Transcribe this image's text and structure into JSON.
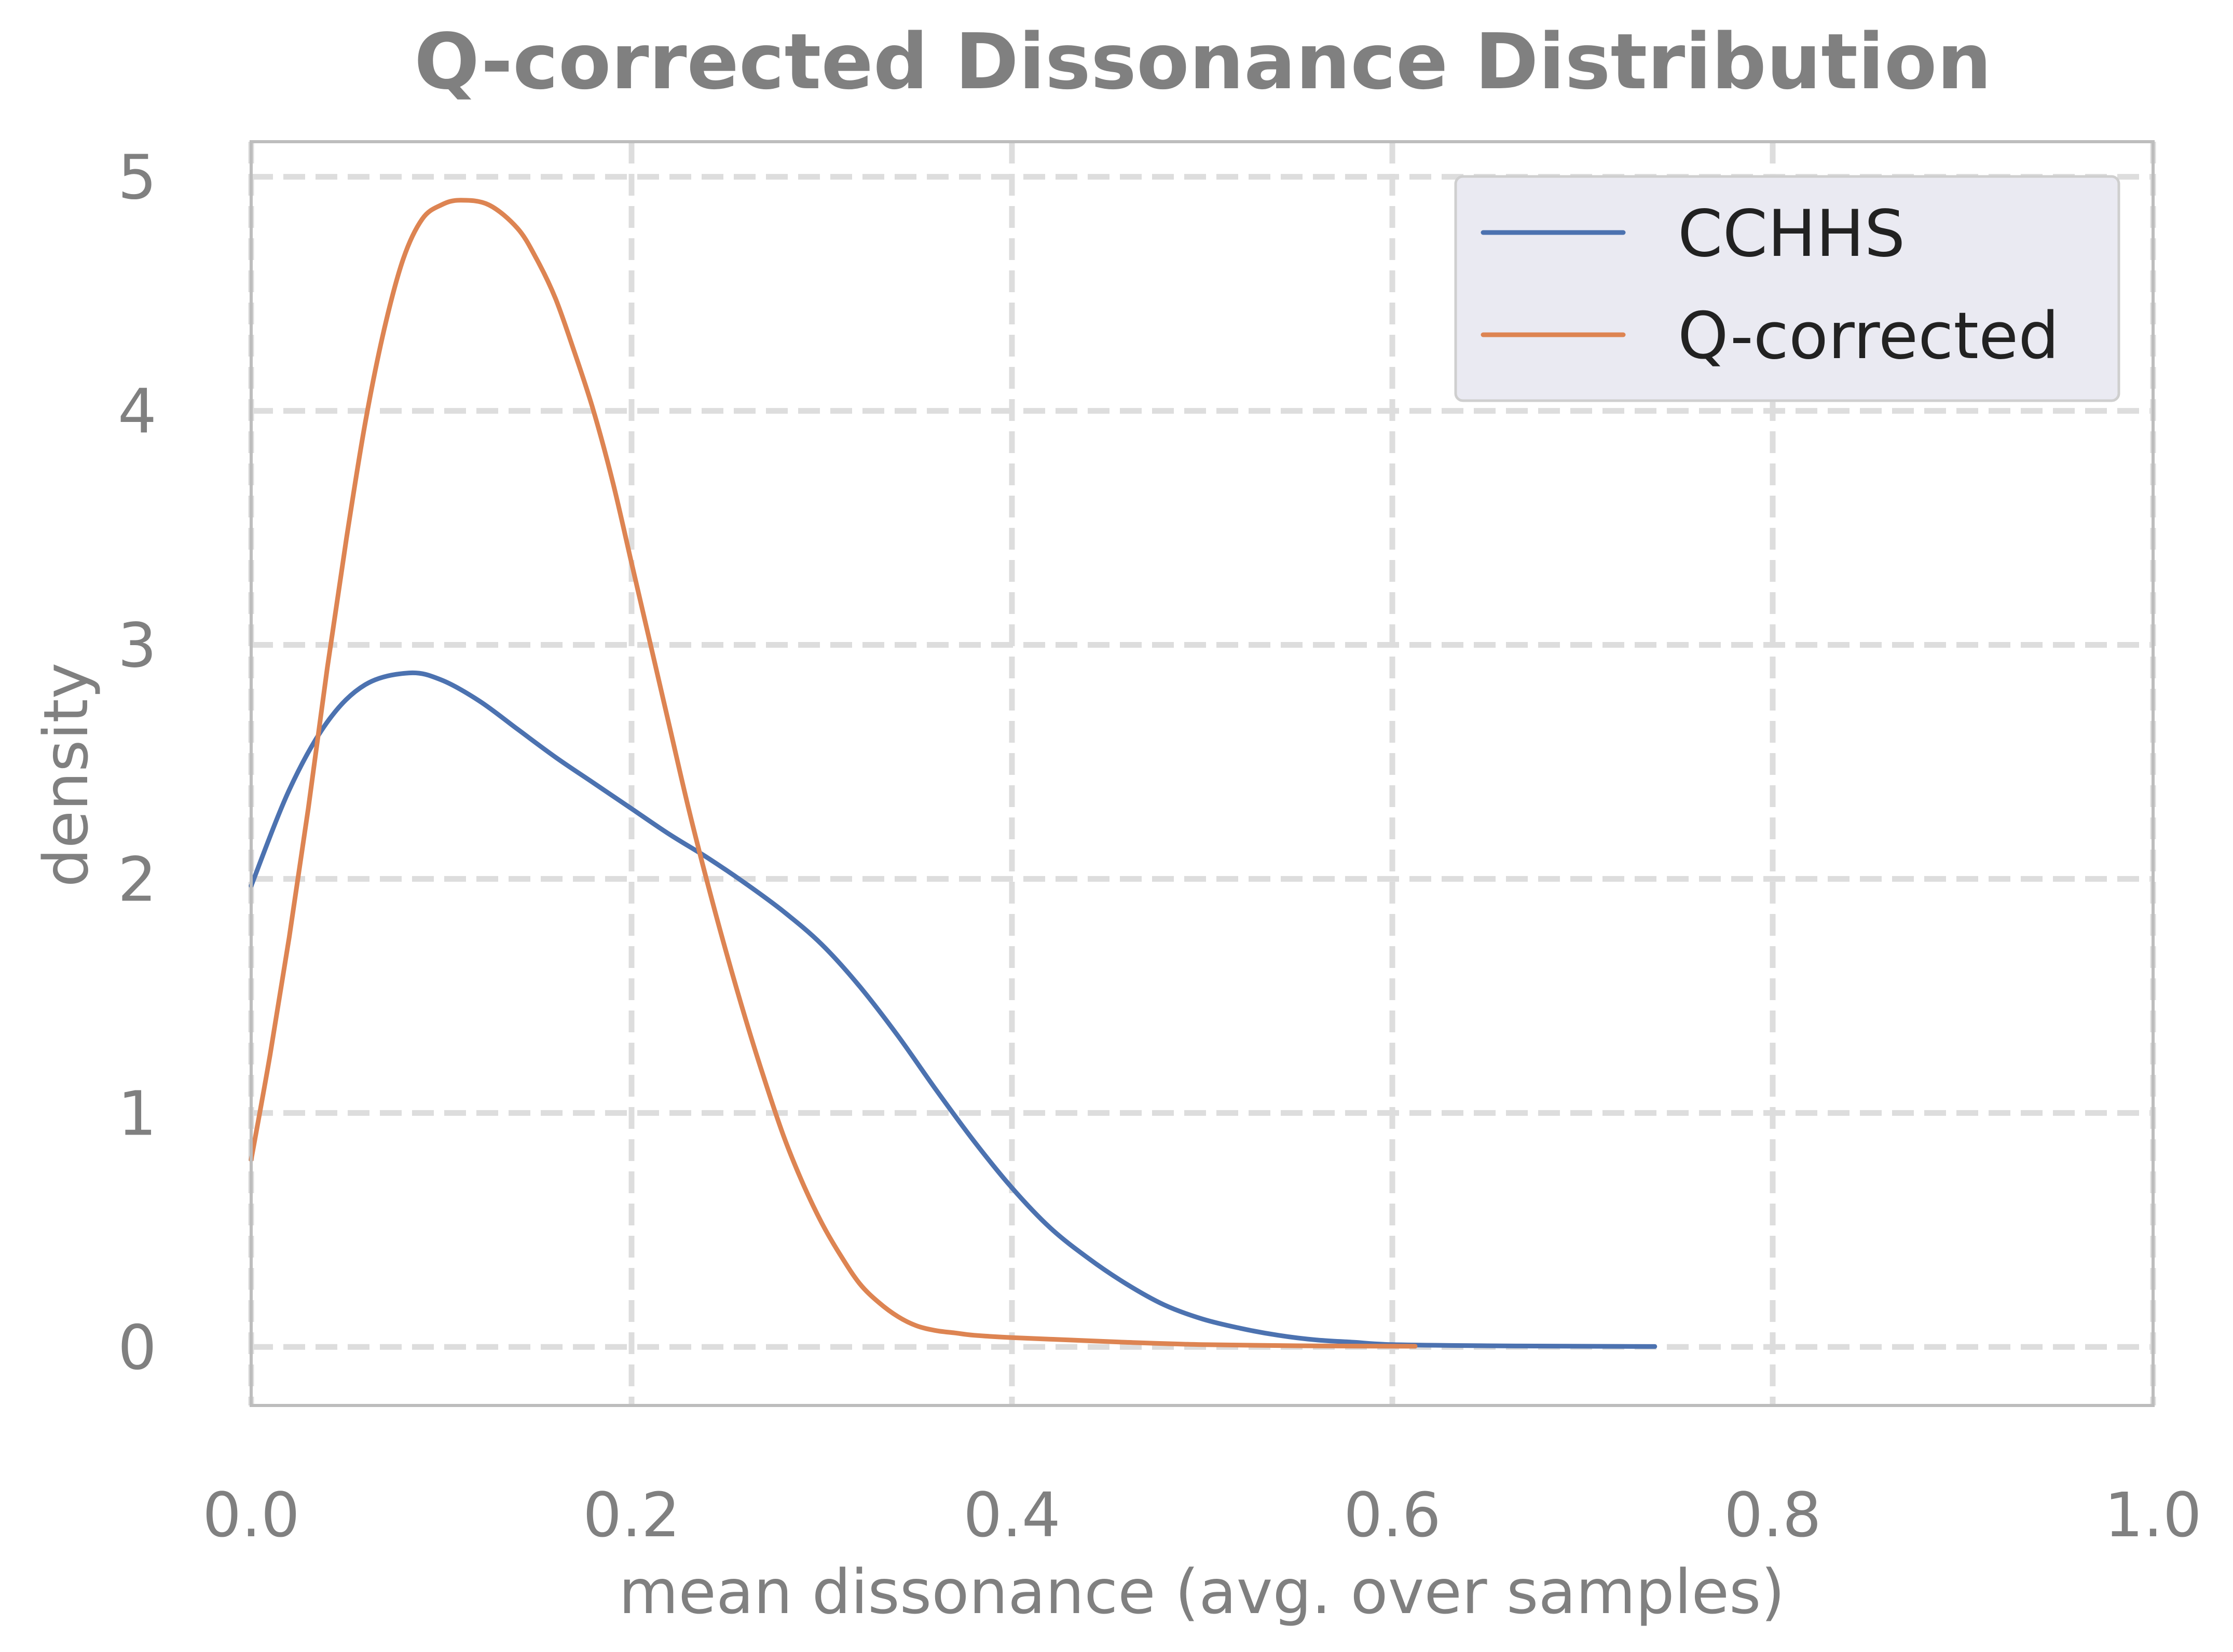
{
  "chart_data": {
    "type": "line",
    "title": "Q-corrected Dissonance Distribution",
    "xlabel": "mean dissonance (avg. over samples)",
    "ylabel": "density",
    "xlim": [
      0.0,
      1.0
    ],
    "ylim": [
      -0.25,
      5.15
    ],
    "xticks": [
      0.0,
      0.2,
      0.4,
      0.6,
      0.8,
      1.0
    ],
    "xtick_labels": [
      "0.0",
      "0.2",
      "0.4",
      "0.6",
      "0.8",
      "1.0"
    ],
    "yticks": [
      0,
      1,
      2,
      3,
      4,
      5
    ],
    "ytick_labels": [
      "0",
      "1",
      "2",
      "3",
      "4",
      "5"
    ],
    "grid": true,
    "legend_position": "top-right",
    "series": [
      {
        "name": "CCHHS",
        "color": "#4c72b0",
        "x": [
          0.0,
          0.02,
          0.04,
          0.06,
          0.083,
          0.1,
          0.12,
          0.14,
          0.16,
          0.18,
          0.2,
          0.22,
          0.24,
          0.26,
          0.28,
          0.3,
          0.32,
          0.34,
          0.36,
          0.38,
          0.4,
          0.42,
          0.44,
          0.46,
          0.48,
          0.5,
          0.52,
          0.54,
          0.56,
          0.58,
          0.6,
          0.65,
          0.7,
          0.738
        ],
        "y": [
          1.97,
          2.38,
          2.67,
          2.83,
          2.88,
          2.85,
          2.76,
          2.64,
          2.52,
          2.41,
          2.3,
          2.19,
          2.09,
          1.98,
          1.86,
          1.72,
          1.54,
          1.33,
          1.1,
          0.88,
          0.68,
          0.51,
          0.38,
          0.27,
          0.18,
          0.12,
          0.08,
          0.05,
          0.03,
          0.02,
          0.01,
          0.005,
          0.003,
          0.002
        ]
      },
      {
        "name": "Q-corrected",
        "color": "#dd8452",
        "x": [
          0.0,
          0.01,
          0.02,
          0.03,
          0.04,
          0.05,
          0.06,
          0.07,
          0.08,
          0.09,
          0.1,
          0.11,
          0.125,
          0.14,
          0.15,
          0.16,
          0.17,
          0.18,
          0.19,
          0.2,
          0.21,
          0.22,
          0.23,
          0.24,
          0.25,
          0.26,
          0.27,
          0.28,
          0.29,
          0.3,
          0.31,
          0.32,
          0.33,
          0.34,
          0.35,
          0.36,
          0.37,
          0.38,
          0.4,
          0.43,
          0.46,
          0.5,
          0.55,
          0.612
        ],
        "y": [
          0.8,
          1.25,
          1.75,
          2.3,
          2.9,
          3.45,
          3.95,
          4.35,
          4.65,
          4.82,
          4.88,
          4.9,
          4.88,
          4.78,
          4.65,
          4.48,
          4.25,
          4.0,
          3.7,
          3.35,
          3.0,
          2.65,
          2.3,
          1.98,
          1.68,
          1.4,
          1.14,
          0.9,
          0.7,
          0.53,
          0.39,
          0.27,
          0.19,
          0.13,
          0.09,
          0.07,
          0.06,
          0.05,
          0.04,
          0.03,
          0.02,
          0.01,
          0.005,
          0.003
        ]
      }
    ]
  }
}
